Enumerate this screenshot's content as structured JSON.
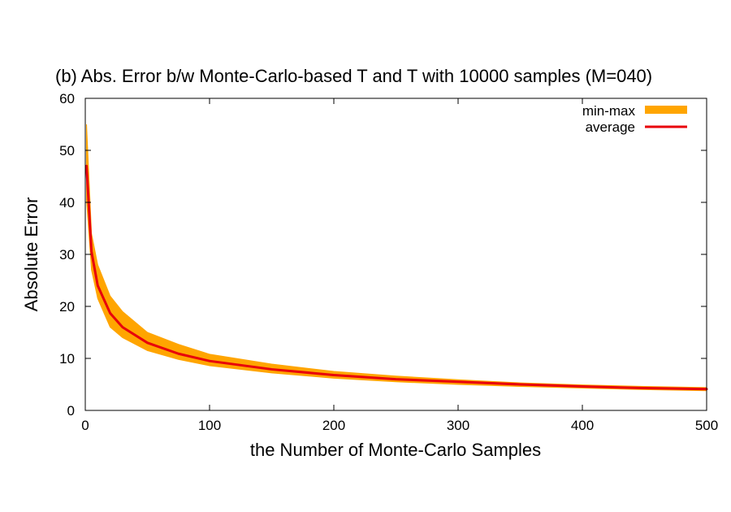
{
  "chart_data": {
    "type": "area",
    "title": "(b) Abs. Error b/w Monte-Carlo-based T and T with 10000 samples (M=040)",
    "xlabel": "the Number of Monte-Carlo Samples",
    "ylabel": "Absolute Error",
    "xlim": [
      0,
      500
    ],
    "ylim": [
      0,
      60
    ],
    "xticks": [
      "0",
      "100",
      "200",
      "300",
      "400",
      "500"
    ],
    "yticks": [
      "0",
      "10",
      "20",
      "30",
      "40",
      "50",
      "60"
    ],
    "grid": false,
    "legend_position": "top-right",
    "series": [
      {
        "name": "min-max",
        "kind": "band",
        "color": "#FFA500",
        "x": [
          1,
          5,
          10,
          20,
          30,
          50,
          75,
          100,
          150,
          200,
          250,
          300,
          350,
          400,
          450,
          500
        ],
        "lower": [
          40.5,
          27,
          21.5,
          16,
          14,
          11.5,
          9.8,
          8.6,
          7.2,
          6.2,
          5.5,
          5.0,
          4.6,
          4.3,
          4.0,
          3.8
        ],
        "upper": [
          55,
          34,
          28,
          22,
          19,
          15,
          12.7,
          10.8,
          8.9,
          7.5,
          6.6,
          5.9,
          5.3,
          4.9,
          4.6,
          4.4
        ]
      },
      {
        "name": "average",
        "kind": "line",
        "color": "#E8000B",
        "x": [
          1,
          5,
          10,
          20,
          30,
          50,
          75,
          100,
          150,
          200,
          250,
          300,
          350,
          400,
          450,
          500
        ],
        "values": [
          47,
          30.5,
          24,
          18.7,
          16,
          13,
          10.9,
          9.5,
          7.9,
          6.8,
          6.0,
          5.5,
          5.0,
          4.6,
          4.3,
          4.1
        ]
      }
    ]
  }
}
